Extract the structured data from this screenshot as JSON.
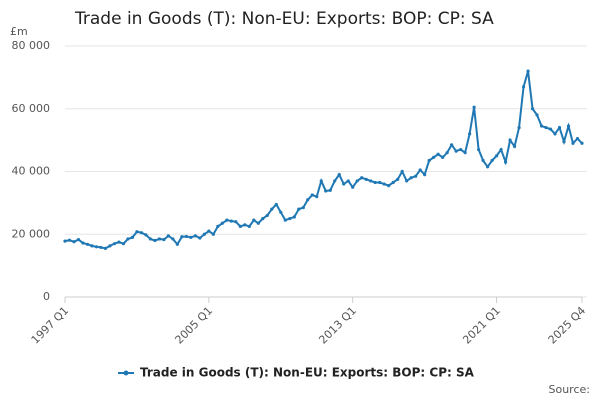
{
  "chart_data": {
    "type": "line",
    "title": "Trade in Goods (T): Non-EU: Exports: BOP: CP: SA",
    "y_label": "£m",
    "source": "Source:",
    "categories": [
      "1997 Q1",
      null,
      null,
      null,
      null,
      null,
      null,
      null,
      null,
      null,
      null,
      null,
      null,
      null,
      null,
      null,
      null,
      null,
      null,
      null,
      null,
      null,
      null,
      null,
      null,
      null,
      null,
      null,
      null,
      null,
      null,
      null,
      "2005 Q1",
      null,
      null,
      null,
      null,
      null,
      null,
      null,
      null,
      null,
      null,
      null,
      null,
      null,
      null,
      null,
      null,
      null,
      null,
      null,
      null,
      null,
      null,
      null,
      null,
      null,
      null,
      null,
      null,
      null,
      null,
      null,
      "2013 Q1",
      null,
      null,
      null,
      null,
      null,
      null,
      null,
      null,
      null,
      null,
      null,
      null,
      null,
      null,
      null,
      null,
      null,
      null,
      null,
      null,
      null,
      null,
      null,
      null,
      null,
      null,
      null,
      null,
      null,
      null,
      null,
      "2021 Q1",
      null,
      null,
      null,
      null,
      null,
      null,
      null,
      null,
      null,
      null,
      null,
      null,
      null,
      null,
      null,
      null,
      null,
      null,
      "2025 Q4"
    ],
    "series": [
      {
        "name": "Trade in Goods (T): Non-EU: Exports: BOP: CP: SA",
        "color": "#1f78b4",
        "values": [
          17800,
          18100,
          17600,
          18300,
          17200,
          16800,
          16300,
          16000,
          15800,
          15500,
          16300,
          17000,
          17500,
          17000,
          18500,
          19000,
          20800,
          20500,
          19800,
          18500,
          18000,
          18500,
          18300,
          19500,
          18500,
          16800,
          19200,
          19300,
          19000,
          19500,
          18800,
          20000,
          21000,
          20000,
          22500,
          23500,
          24500,
          24200,
          24000,
          22500,
          23000,
          22500,
          24500,
          23500,
          25000,
          26000,
          28000,
          29500,
          27000,
          24500,
          25000,
          25500,
          28000,
          28500,
          31000,
          32500,
          32000,
          37000,
          33800,
          34000,
          37000,
          39000,
          36000,
          37000,
          35000,
          37000,
          38000,
          37500,
          37000,
          36500,
          36500,
          36000,
          35500,
          36500,
          37500,
          40000,
          37000,
          38000,
          38500,
          40500,
          39000,
          43500,
          44500,
          45500,
          44500,
          46000,
          48500,
          46500,
          47000,
          46000,
          52000,
          60500,
          47000,
          43500,
          41500,
          43500,
          45000,
          47000,
          43000,
          50000,
          48000,
          54000,
          67000,
          72000,
          60000,
          58000,
          54500,
          54000,
          53500,
          52000,
          54000,
          49500,
          54500,
          49000,
          50500,
          49000
        ]
      }
    ],
    "ylim": [
      0,
      80000
    ],
    "yticks": [
      0,
      {
        "value": 20000,
        "label": "20 000"
      },
      {
        "value": 40000,
        "label": "40 000"
      },
      {
        "value": 60000,
        "label": "60 000"
      },
      {
        "value": 80000,
        "label": "80 000"
      }
    ],
    "grid": true
  }
}
